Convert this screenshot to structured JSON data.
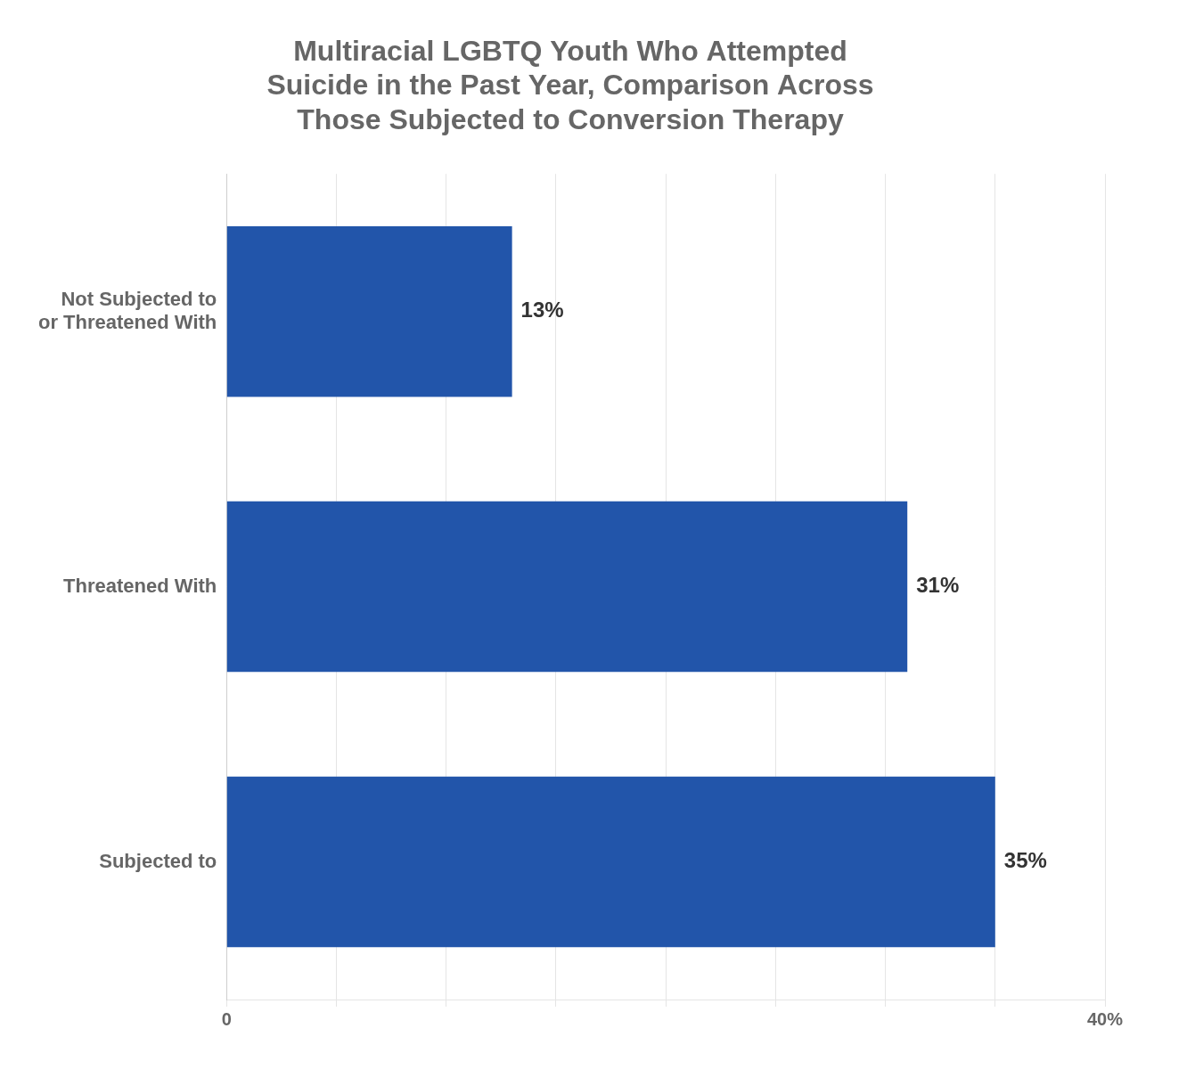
{
  "chart_data": {
    "type": "bar",
    "orientation": "horizontal",
    "title": "Multiracial LGBTQ Youth Who Attempted\nSuicide in the Past Year, Comparison Across\nThose Subjected to Conversion Therapy",
    "categories": [
      "Not Subjected to\nor Threatened With",
      "Threatened With",
      "Subjected to"
    ],
    "values": [
      13,
      31,
      35
    ],
    "value_labels": [
      "13%",
      "31%",
      "35%"
    ],
    "data_labels": true,
    "color": "#2255aa",
    "xlim": [
      0,
      40
    ],
    "xticks": [
      0,
      {
        "value": 5,
        "label": ""
      },
      {
        "value": 10,
        "label": ""
      },
      {
        "value": 15,
        "label": ""
      },
      {
        "value": 20,
        "label": ""
      },
      {
        "value": 25,
        "label": ""
      },
      {
        "value": 30,
        "label": ""
      },
      {
        "value": 35,
        "label": ""
      },
      {
        "value": 40,
        "label": "40%"
      }
    ],
    "grid": true
  }
}
